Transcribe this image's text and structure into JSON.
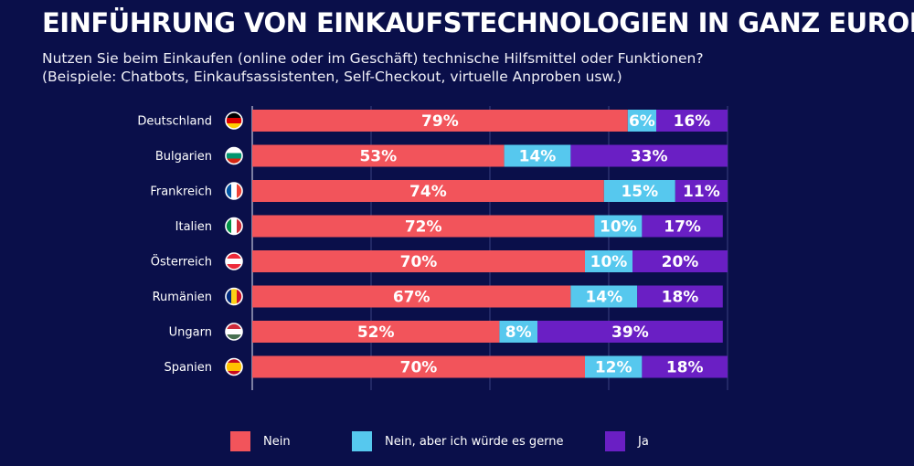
{
  "header": {
    "title": "EINFÜHRUNG VON EINKAUFSTECHNOLOGIEN IN GANZ EUROPA",
    "subtitle_line1": "Nutzen Sie beim Einkaufen (online oder im Geschäft) technische Hilfsmittel oder Funktionen?",
    "subtitle_line2": "(Beispiele: Chatbots, Einkaufsassistenten, Self-Checkout, virtuelle Anproben usw.)"
  },
  "chart_data": {
    "type": "bar",
    "orientation": "horizontal",
    "stacked": true,
    "categories": [
      "Deutschland",
      "Bulgarien",
      "Frankreich",
      "Italien",
      "Österreich",
      "Rumänien",
      "Ungarn",
      "Spanien"
    ],
    "series": [
      {
        "name": "Nein",
        "color": "#f2545b",
        "values": [
          79,
          53,
          74,
          72,
          70,
          67,
          52,
          70
        ]
      },
      {
        "name": "Nein, aber ich würde es gerne",
        "color": "#56c8ee",
        "values": [
          6,
          14,
          15,
          10,
          10,
          14,
          8,
          12
        ]
      },
      {
        "name": "Ja",
        "color": "#6a1fc4",
        "values": [
          16,
          33,
          11,
          17,
          20,
          18,
          39,
          18
        ]
      }
    ],
    "value_suffix": "%",
    "xlim": [
      0,
      100
    ],
    "grid": true,
    "legend_position": "bottom"
  }
}
